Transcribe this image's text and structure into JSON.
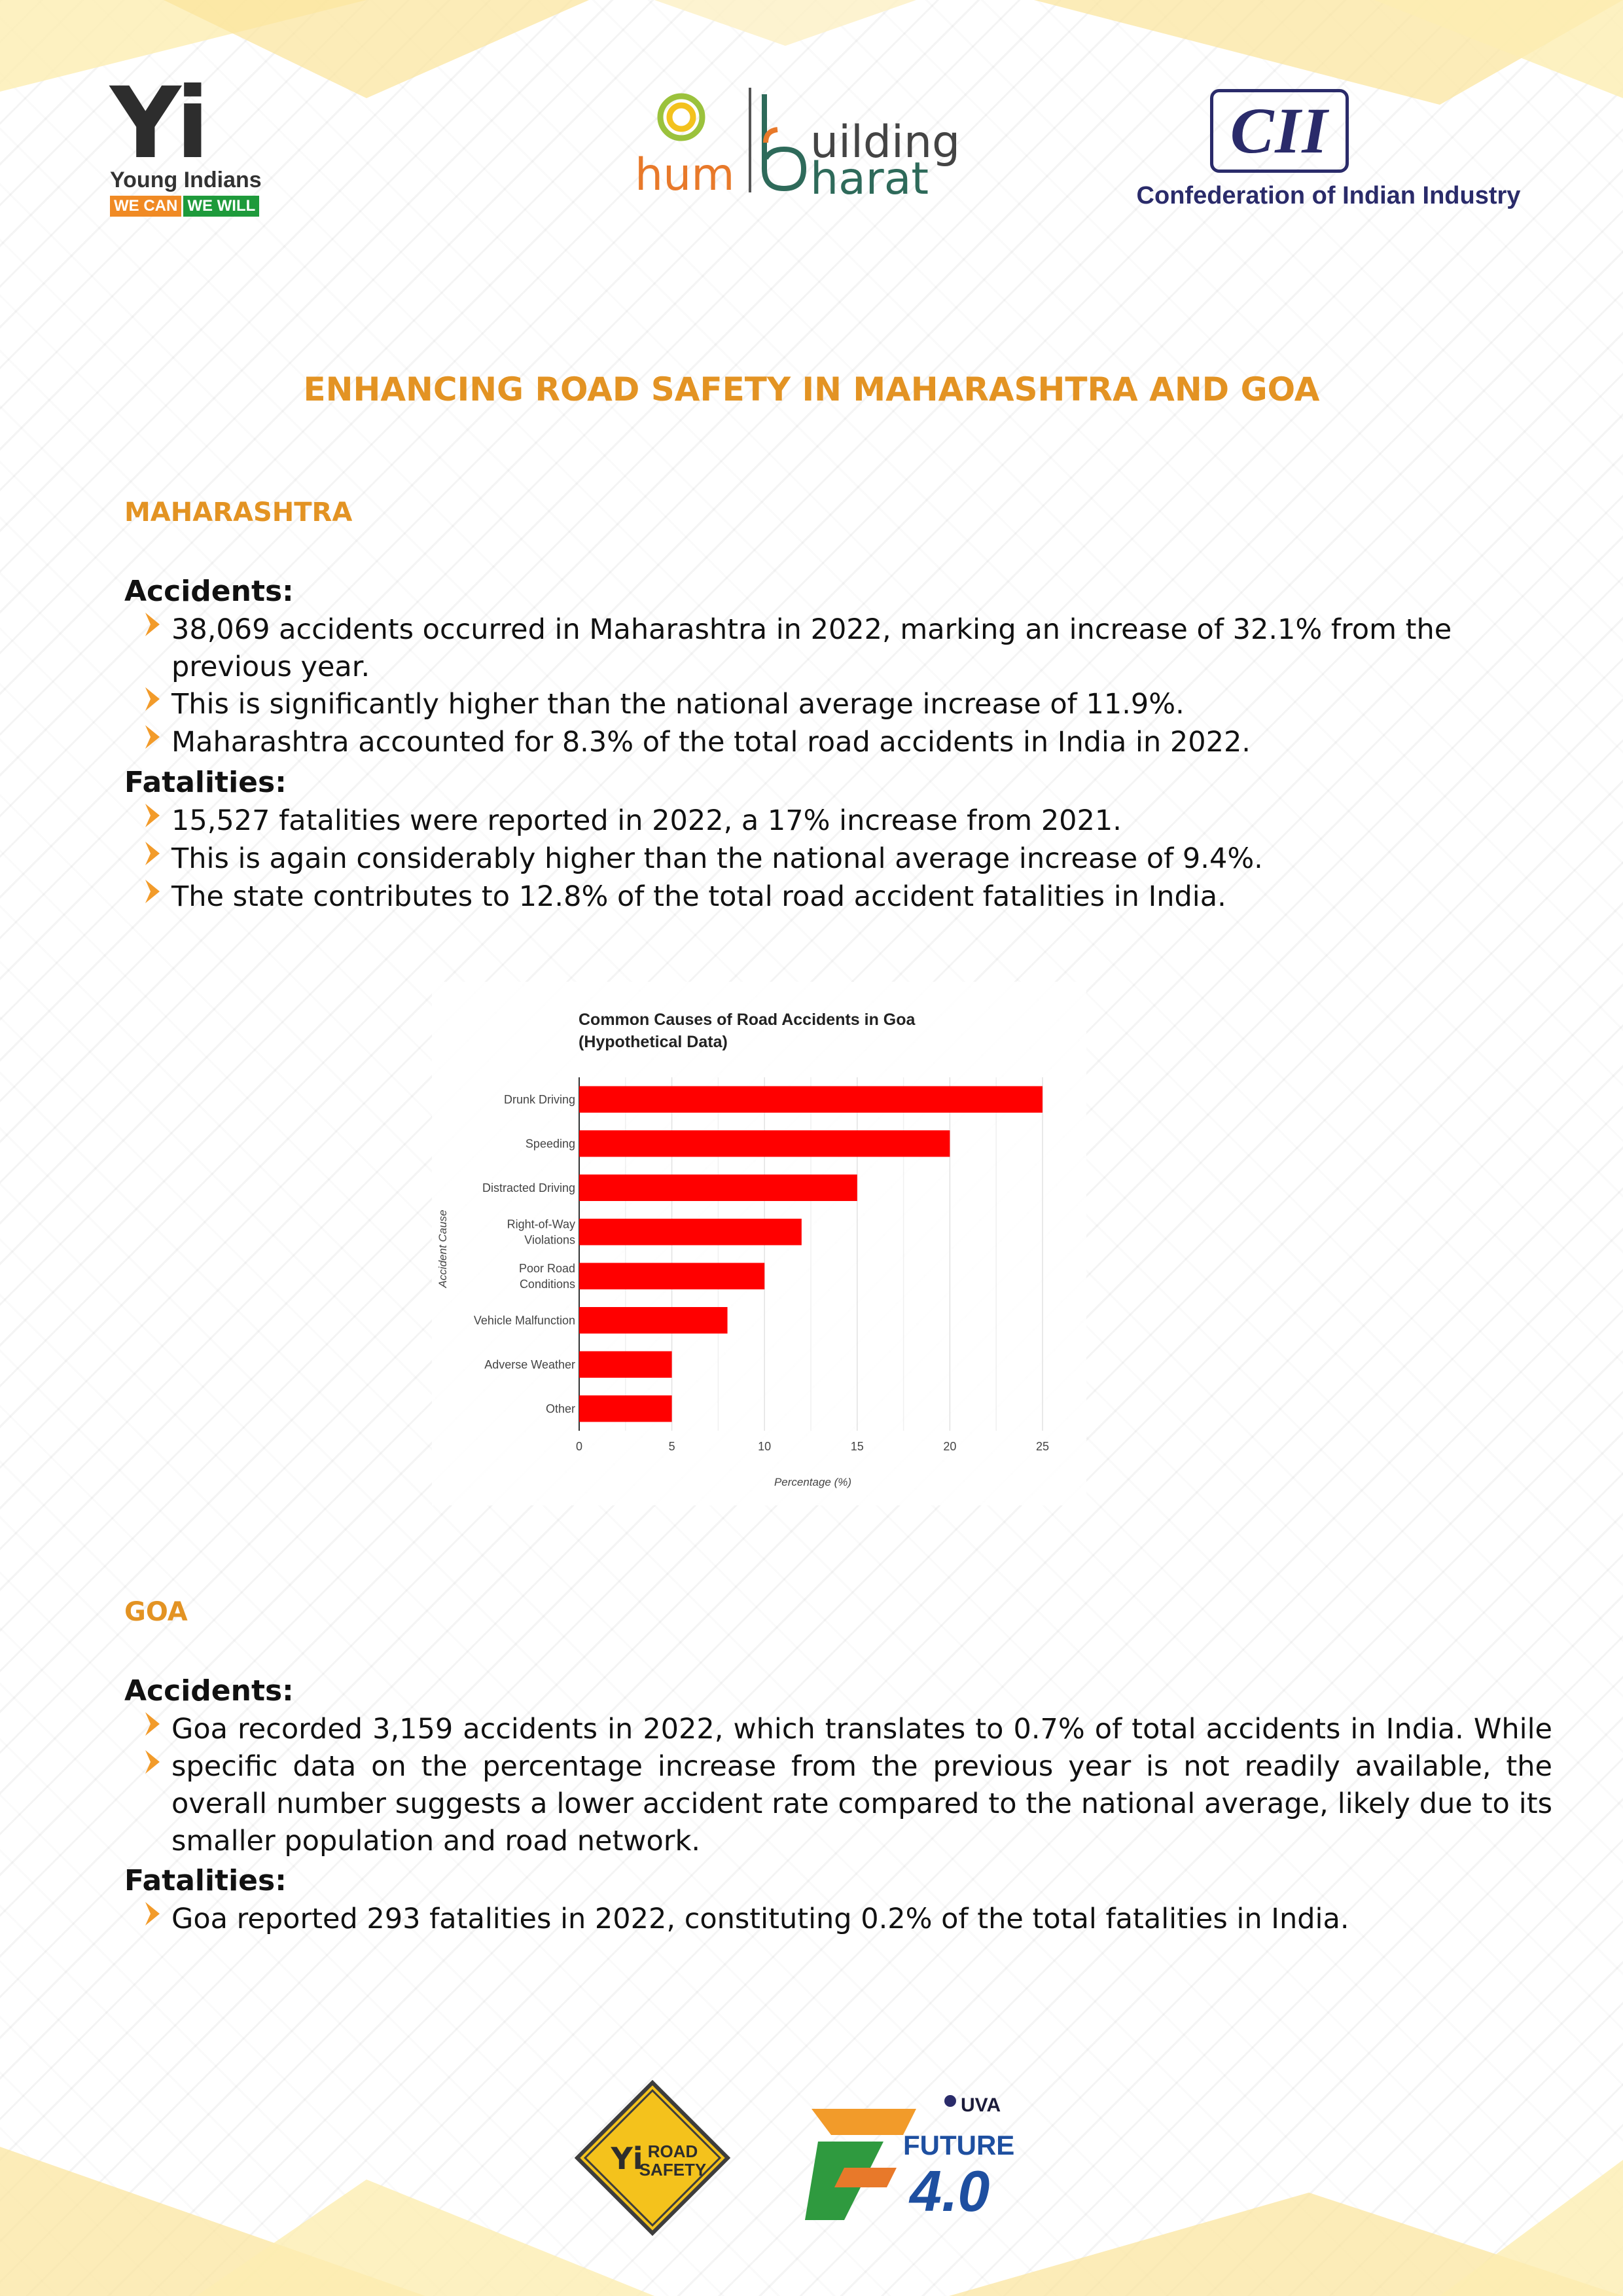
{
  "header": {
    "yi_logo": {
      "mark": "Yi",
      "name": "Young Indians",
      "tag_left": "WE CAN",
      "tag_right": "WE WILL"
    },
    "hum_logo": {
      "hum": "hum",
      "building": "uilding",
      "bharat": "harat"
    },
    "cii_logo": {
      "mark": "CII",
      "name": "Confederation of Indian Industry"
    }
  },
  "title": "ENHANCING ROAD SAFETY IN MAHARASHTRA AND GOA",
  "maharashtra": {
    "heading": "MAHARASHTRA",
    "accidents_heading": "Accidents:",
    "accidents": [
      "38,069 accidents occurred in Maharashtra in 2022, marking an increase of 32.1% from the previous year.",
      "This is significantly higher than the national average increase of 11.9%.",
      "Maharashtra accounted for 8.3% of the total road accidents in India in 2022."
    ],
    "fatalities_heading": "Fatalities:",
    "fatalities": [
      "15,527 fatalities were reported in 2022, a 17% increase from 2021.",
      "This is again considerably higher than the national average increase of 9.4%.",
      "The state contributes to 12.8% of the total road accident fatalities in India."
    ]
  },
  "chart_data": {
    "type": "bar",
    "orientation": "horizontal",
    "title": "Common Causes of Road Accidents in Goa",
    "subtitle": "(Hypothetical Data)",
    "xlabel": "Percentage (%)",
    "ylabel": "Accident Cause",
    "categories": [
      "Drunk Driving",
      "Speeding",
      "Distracted Driving",
      "Right-of-Way Violations",
      "Poor Road Conditions",
      "Vehicle Malfunction",
      "Adverse Weather",
      "Other"
    ],
    "category_lines": [
      [
        "Drunk Driving"
      ],
      [
        "Speeding"
      ],
      [
        "Distracted Driving"
      ],
      [
        "Right-of-Way",
        "Violations"
      ],
      [
        "Poor Road",
        "Conditions"
      ],
      [
        "Vehicle Malfunction"
      ],
      [
        "Adverse Weather"
      ],
      [
        "Other"
      ]
    ],
    "values": [
      25,
      20,
      15,
      12,
      10,
      8,
      5,
      5
    ],
    "xlim": [
      0,
      25
    ],
    "xticks": [
      0,
      5,
      10,
      15,
      20,
      25
    ],
    "bar_color": "#ff0000",
    "grid": "vertical"
  },
  "goa": {
    "heading": "GOA",
    "accidents_heading": "Accidents:",
    "accidents": [
      "Goa recorded 3,159 accidents in 2022, which translates to 0.7% of total accidents in India. While specific data on the percentage increase from the previous year is not readily available, the overall number suggests a lower accident rate compared to the national average, likely due to its smaller population and road network."
    ],
    "fatalities_heading": "Fatalities:",
    "fatalities": [
      "Goa reported 293 fatalities in 2022, constituting 0.2% of the total fatalities in India."
    ]
  },
  "footer": {
    "road_safety_logo": {
      "mark": "Yi",
      "line1": "ROAD",
      "line2": "SAFETY"
    },
    "future_logo": {
      "uva": "UVA",
      "word": "FUTURE",
      "version": "4.0"
    }
  },
  "colors": {
    "accent": "#e39323",
    "bullet_arrow": "#f29b2a",
    "bar": "#ff0000"
  }
}
